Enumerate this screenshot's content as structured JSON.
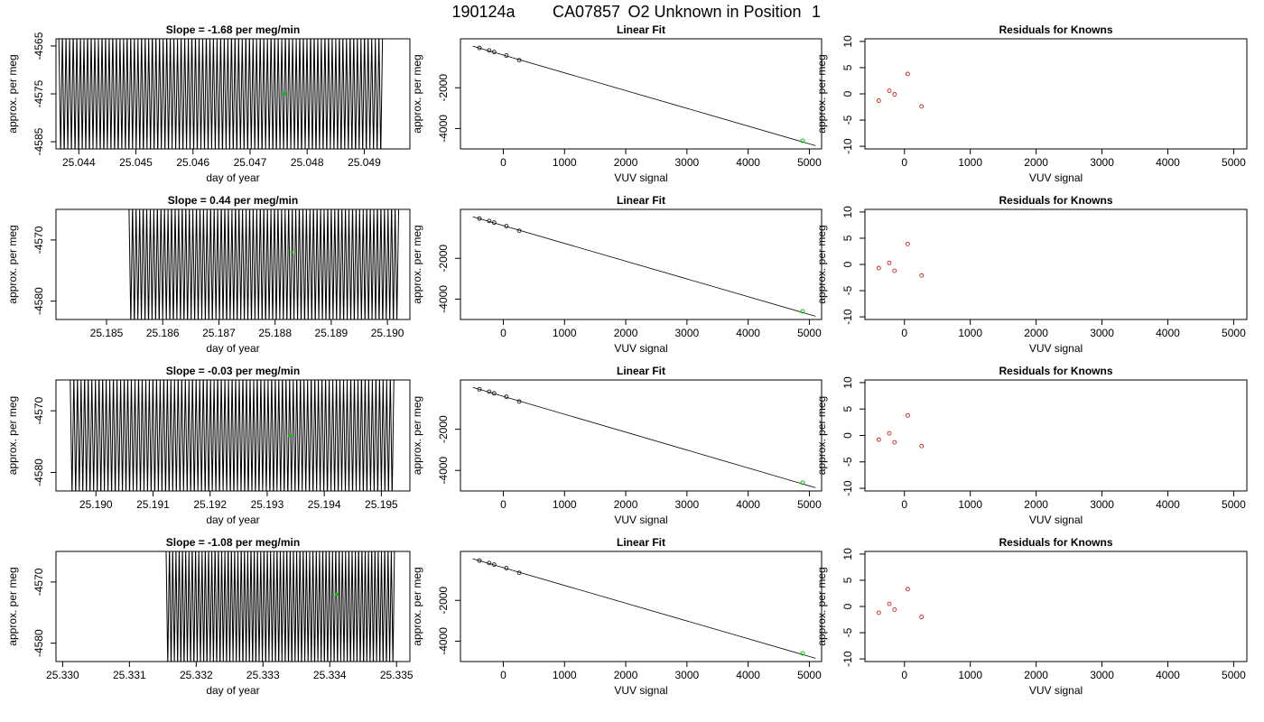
{
  "page": {
    "title_parts": [
      "190124a",
      "CA07857",
      "O2 Unknown in Position",
      "1"
    ]
  },
  "rows": [
    {
      "timeseries": {
        "title": "Slope =  -1.68  per meg/min",
        "xlabel": "day of year",
        "ylabel": "approx. per meg",
        "xticks": [
          "25.044",
          "25.045",
          "25.046",
          "25.047",
          "25.048",
          "25.049"
        ]
      },
      "fit": {
        "title": "Linear Fit",
        "xlabel": "VUV signal",
        "ylabel": "approx. per meg"
      },
      "residuals": {
        "title": "Residuals for Knowns",
        "xlabel": "VUV signal",
        "ylabel": "approx. per meg"
      }
    },
    {
      "timeseries": {
        "title": "Slope =  0.44  per meg/min",
        "xlabel": "day of year",
        "ylabel": "approx. per meg",
        "xticks": [
          "25.185",
          "25.186",
          "25.187",
          "25.188",
          "25.189",
          "25.190"
        ]
      },
      "fit": {
        "title": "Linear Fit",
        "xlabel": "VUV signal",
        "ylabel": "approx. per meg"
      },
      "residuals": {
        "title": "Residuals for Knowns",
        "xlabel": "VUV signal",
        "ylabel": "approx. per meg"
      }
    },
    {
      "timeseries": {
        "title": "Slope =  -0.03  per meg/min",
        "xlabel": "day of year",
        "ylabel": "approx. per meg",
        "xticks": [
          "25.190",
          "25.191",
          "25.192",
          "25.193",
          "25.194",
          "25.195"
        ]
      },
      "fit": {
        "title": "Linear Fit",
        "xlabel": "VUV signal",
        "ylabel": "approx. per meg"
      },
      "residuals": {
        "title": "Residuals for Knowns",
        "xlabel": "VUV signal",
        "ylabel": "approx. per meg"
      }
    },
    {
      "timeseries": {
        "title": "Slope =  -1.08  per meg/min",
        "xlabel": "day of year",
        "ylabel": "approx. per meg",
        "xticks": [
          "25.330",
          "25.331",
          "25.332",
          "25.333",
          "25.334",
          "25.335"
        ]
      },
      "fit": {
        "title": "Linear Fit",
        "xlabel": "VUV signal",
        "ylabel": "approx. per meg"
      },
      "residuals": {
        "title": "Residuals for Knowns",
        "xlabel": "VUV signal",
        "ylabel": "approx. per meg"
      }
    }
  ],
  "colors": {
    "trace": "#000000",
    "unknown_point": "#00cc00",
    "known_point": "#cc0000",
    "fit_line": "#000000"
  },
  "chart_data": [
    {
      "type": "line",
      "panel": "row1-timeseries",
      "title": "Slope =  -1.68  per meg/min",
      "xlabel": "day of year",
      "ylabel": "approx. per meg",
      "xlim": [
        25.0436,
        25.0498
      ],
      "ylim": [
        -4586.5,
        -4563.5
      ],
      "yticks": [
        -4565,
        -4575,
        -4585
      ],
      "ytick_labels": [
        "-4565",
        "-4575",
        "-4585"
      ],
      "xticks": [
        25.044,
        25.045,
        25.046,
        25.047,
        25.048,
        25.049
      ],
      "series": [
        {
          "x_start": 25.04365,
          "x_end": 25.04932,
          "y_min": -4586.5,
          "y_max": -4563.5,
          "cycles": 90,
          "x_trace_start": 25.04365
        }
      ],
      "unknown_point": {
        "x": 25.0476,
        "y": -4575.0
      }
    },
    {
      "type": "line",
      "panel": "row2-timeseries",
      "title": "Slope =  0.44  per meg/min",
      "xlabel": "day of year",
      "ylabel": "approx. per meg",
      "xlim": [
        25.1841,
        25.1904
      ],
      "ylim": [
        -4583,
        -4565
      ],
      "yticks": [
        -4570,
        -4580
      ],
      "ytick_labels": [
        "-4570",
        "-4580"
      ],
      "xticks": [
        25.185,
        25.186,
        25.187,
        25.188,
        25.189,
        25.19
      ],
      "series": [
        {
          "x_start": 25.1854,
          "x_end": 25.1902,
          "y_min": -4583,
          "y_max": -4565,
          "cycles": 76,
          "x_trace_start": 25.1854
        }
      ],
      "unknown_point": {
        "x": 25.1883,
        "y": -4572.0
      }
    },
    {
      "type": "line",
      "panel": "row3-timeseries",
      "title": "Slope =  -0.03  per meg/min",
      "xlabel": "day of year",
      "ylabel": "approx. per meg",
      "xlim": [
        25.1893,
        25.1955
      ],
      "ylim": [
        -4583,
        -4565
      ],
      "yticks": [
        -4570,
        -4580
      ],
      "ytick_labels": [
        "-4570",
        "-4580"
      ],
      "xticks": [
        25.19,
        25.191,
        25.192,
        25.193,
        25.194,
        25.195
      ],
      "series": [
        {
          "x_start": 25.18955,
          "x_end": 25.19522,
          "y_min": -4583,
          "y_max": -4565,
          "cycles": 90,
          "x_trace_start": 25.18955
        }
      ],
      "unknown_point": {
        "x": 25.1934,
        "y": -4574.0
      }
    },
    {
      "type": "line",
      "panel": "row4-timeseries",
      "title": "Slope =  -1.08  per meg/min",
      "xlabel": "day of year",
      "ylabel": "approx. per meg",
      "xlim": [
        25.3299,
        25.3352
      ],
      "ylim": [
        -4583,
        -4565
      ],
      "yticks": [
        -4570,
        -4580
      ],
      "ytick_labels": [
        "-4570",
        "-4580"
      ],
      "xticks": [
        25.33,
        25.331,
        25.332,
        25.333,
        25.334,
        25.335
      ],
      "series": [
        {
          "x_start": 25.33155,
          "x_end": 25.33497,
          "y_min": -4583,
          "y_max": -4565,
          "cycles": 70,
          "x_trace_start": 25.33155
        }
      ],
      "unknown_point": {
        "x": 25.3341,
        "y": -4572.0
      }
    },
    {
      "type": "scatter",
      "panel": "fit",
      "title": "Linear Fit",
      "xlabel": "VUV signal",
      "ylabel": "approx. per meg",
      "xlim": [
        -700,
        5200
      ],
      "ylim": [
        -5000,
        400
      ],
      "xticks": [
        0,
        1000,
        2000,
        3000,
        4000,
        5000
      ],
      "yticks": [
        -2000,
        -4000
      ],
      "known_points": {
        "x": [
          -390,
          -230,
          -150,
          50,
          260
        ],
        "y": [
          -50,
          -170,
          -250,
          -420,
          -650
        ]
      },
      "unknown_point": {
        "x": 4890,
        "y": -4600
      },
      "fit_line": {
        "x": [
          -500,
          5100
        ],
        "y": [
          40,
          -4840
        ]
      }
    },
    {
      "type": "scatter",
      "panel": "row1-residuals",
      "title": "Residuals for Knowns",
      "xlabel": "VUV signal",
      "ylabel": "approx. per meg",
      "xlim": [
        -600,
        5200
      ],
      "ylim": [
        -10.5,
        10.5
      ],
      "xticks": [
        0,
        1000,
        2000,
        3000,
        4000,
        5000
      ],
      "yticks": [
        10,
        5,
        0,
        -5,
        -10
      ],
      "x": [
        -390,
        -230,
        -150,
        50,
        260
      ],
      "y": [
        -1.3,
        0.6,
        -0.1,
        3.8,
        -2.4
      ]
    },
    {
      "type": "scatter",
      "panel": "row2-residuals",
      "title": "Residuals for Knowns",
      "xlabel": "VUV signal",
      "ylabel": "approx. per meg",
      "xlim": [
        -600,
        5200
      ],
      "ylim": [
        -10.5,
        10.5
      ],
      "xticks": [
        0,
        1000,
        2000,
        3000,
        4000,
        5000
      ],
      "yticks": [
        10,
        5,
        0,
        -5,
        -10
      ],
      "x": [
        -390,
        -230,
        -150,
        50,
        260
      ],
      "y": [
        -0.7,
        0.3,
        -1.2,
        3.9,
        -2.1
      ]
    },
    {
      "type": "scatter",
      "panel": "row3-residuals",
      "title": "Residuals for Knowns",
      "xlabel": "VUV signal",
      "ylabel": "approx. per meg",
      "xlim": [
        -600,
        5200
      ],
      "ylim": [
        -10.5,
        10.5
      ],
      "xticks": [
        0,
        1000,
        2000,
        3000,
        4000,
        5000
      ],
      "yticks": [
        10,
        5,
        0,
        -5,
        -10
      ],
      "x": [
        -390,
        -230,
        -150,
        50,
        260
      ],
      "y": [
        -0.8,
        0.4,
        -1.3,
        3.8,
        -2.0
      ]
    },
    {
      "type": "scatter",
      "panel": "row4-residuals",
      "title": "Residuals for Knowns",
      "xlabel": "VUV signal",
      "ylabel": "approx. per meg",
      "xlim": [
        -600,
        5200
      ],
      "ylim": [
        -10.5,
        10.5
      ],
      "xticks": [
        0,
        1000,
        2000,
        3000,
        4000,
        5000
      ],
      "yticks": [
        10,
        5,
        0,
        -5,
        -10
      ],
      "x": [
        -390,
        -230,
        -150,
        50,
        260
      ],
      "y": [
        -1.2,
        0.5,
        -0.6,
        3.3,
        -2.0
      ]
    }
  ]
}
